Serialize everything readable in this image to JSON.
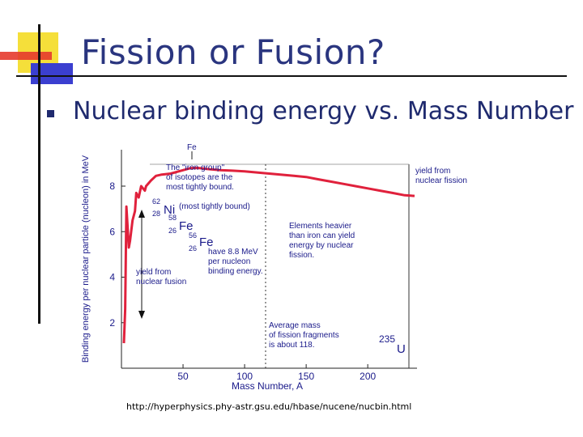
{
  "slide": {
    "title": "Fission or Fusion?",
    "bullet": "Nuclear binding energy vs. Mass Number",
    "source": "http://hyperphysics.phy-astr.gsu.edu/hbase/nucene/nucbin.html"
  },
  "colors": {
    "title": "#2a357f",
    "curve": "#e0213c",
    "accent_yellow": "#f5df3a",
    "accent_red": "#e53a2e",
    "accent_blue": "#3b3fd0"
  },
  "chart_data": {
    "type": "line",
    "title": "",
    "xlabel": "Mass Number, A",
    "ylabel": "Binding energy per nuclear particle (nucleon) in MeV",
    "xlim": [
      0,
      240
    ],
    "ylim": [
      0,
      9.6
    ],
    "x_ticks": [
      50,
      100,
      150,
      200
    ],
    "y_ticks": [
      2,
      4,
      6,
      8
    ],
    "grid": false,
    "series": [
      {
        "x": [
          2,
          3,
          4,
          6,
          7,
          9,
          11,
          12,
          14,
          16,
          19,
          20,
          24,
          28,
          32,
          40,
          50,
          56,
          62,
          70,
          80,
          90,
          100,
          110,
          120,
          130,
          140,
          150,
          160,
          170,
          180,
          190,
          200,
          210,
          220,
          230,
          238
        ],
        "y": [
          1.1,
          2.6,
          7.1,
          5.3,
          5.6,
          6.5,
          6.9,
          7.7,
          7.5,
          8.0,
          7.8,
          8.0,
          8.25,
          8.45,
          8.5,
          8.55,
          8.7,
          8.79,
          8.8,
          8.75,
          8.7,
          8.68,
          8.65,
          8.6,
          8.55,
          8.5,
          8.45,
          8.4,
          8.3,
          8.2,
          8.1,
          8.0,
          7.9,
          7.8,
          7.7,
          7.6,
          7.57
        ]
      }
    ],
    "annotations": {
      "fe_top": "Fe",
      "iron_group": [
        "The \"iron group\"",
        "of isotopes are the",
        "most tightly bound."
      ],
      "ni_mass": "62",
      "ni_z": "28",
      "ni_symbol": "Ni",
      "ni_note": "(most tightly bound)",
      "fe58_mass": "58",
      "fe58_z": "26",
      "fe58_symbol": "Fe",
      "fe56_mass": "56",
      "fe56_z": "26",
      "fe56_symbol": "Fe",
      "fe56_note": [
        "have 8.8 MeV",
        "per nucleon",
        "binding energy."
      ],
      "fusion_yield": [
        "yield from",
        "nuclear fusion"
      ],
      "fission_yield": [
        "yield from",
        "nuclear fission"
      ],
      "heavier": [
        "Elements heavier",
        "than iron can yield",
        "energy by nuclear",
        "fission."
      ],
      "average": [
        "Average mass",
        "of fission fragments",
        "is about 118."
      ],
      "u_mass": "235",
      "u_symbol": "U"
    }
  }
}
